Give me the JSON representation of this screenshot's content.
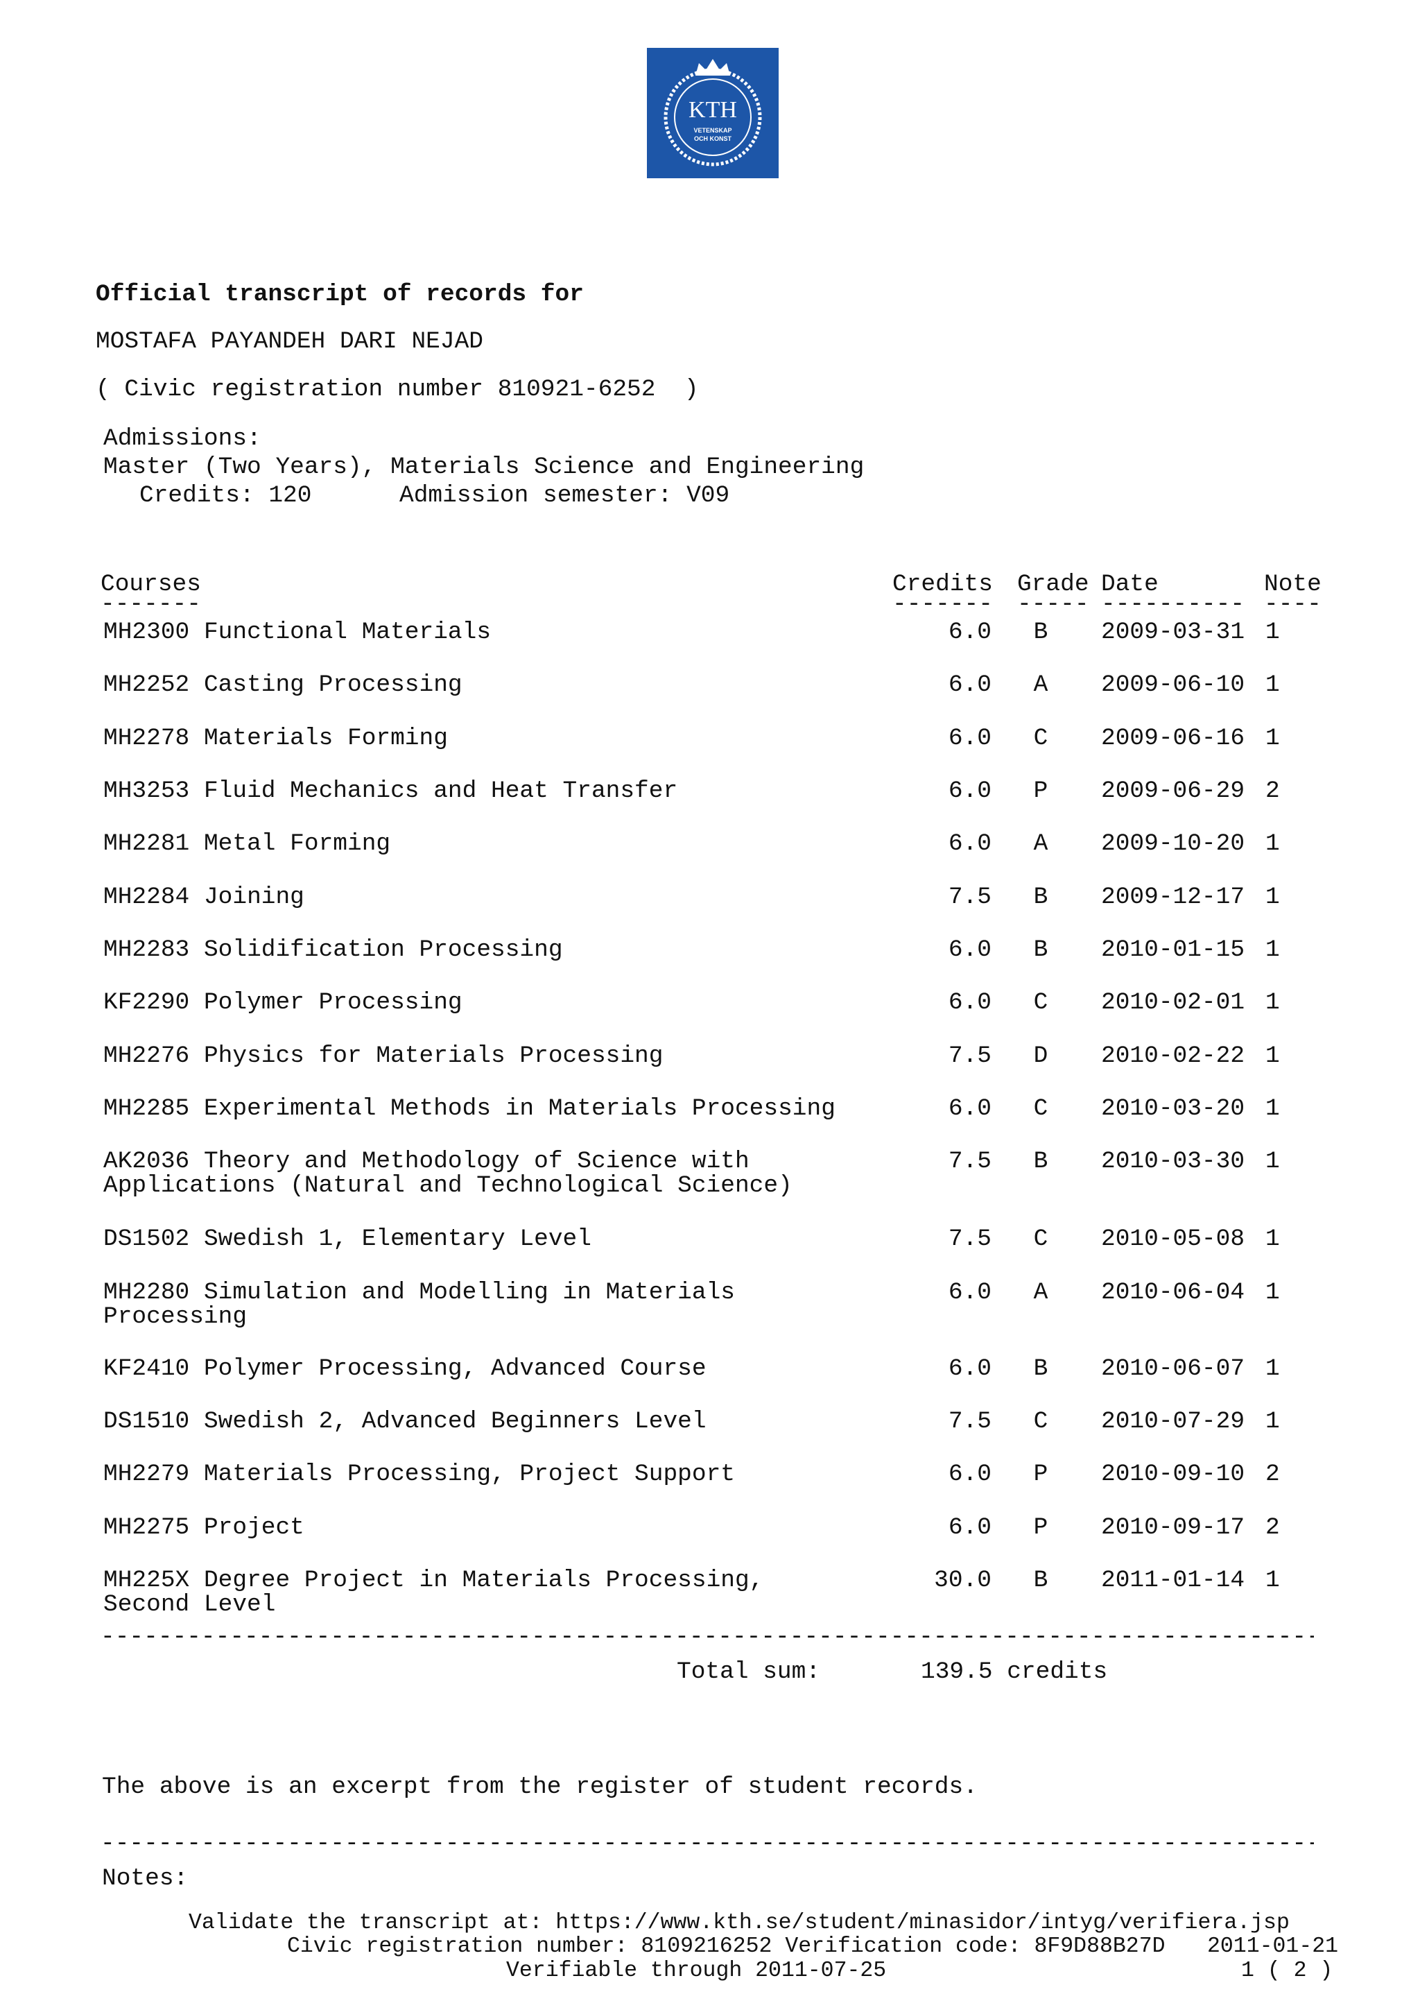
{
  "logo": {
    "text": "KTH",
    "subtext_1": "VETENSKAP",
    "subtext_2": "OCH KONST",
    "color": "#1d56a8"
  },
  "header": {
    "title": "Official transcript of records for",
    "student_name": "MOSTAFA PAYANDEH DARI NEJAD",
    "civic_line": "( Civic registration number 810921-6252  )"
  },
  "admissions": {
    "label": "Admissions:",
    "program": "Master (Two Years), Materials Science and Engineering",
    "credits_line": "Credits: 120",
    "semester_line": "Admission semester: V09"
  },
  "table": {
    "headers": {
      "courses": "Courses",
      "credits": "Credits",
      "grade": "Grade",
      "date": "Date",
      "note": "Note"
    },
    "header_underlines": {
      "courses": "-------",
      "credits": "-------",
      "grade": "-----",
      "date": "----------",
      "note": "----"
    },
    "courses": [
      {
        "code": "MH2300",
        "name": "Functional Materials",
        "credits": "6.0",
        "grade": "B",
        "date": "2009-03-31",
        "note": "1"
      },
      {
        "code": "MH2252",
        "name": "Casting Processing",
        "credits": "6.0",
        "grade": "A",
        "date": "2009-06-10",
        "note": "1"
      },
      {
        "code": "MH2278",
        "name": "Materials Forming",
        "credits": "6.0",
        "grade": "C",
        "date": "2009-06-16",
        "note": "1"
      },
      {
        "code": "MH3253",
        "name": "Fluid Mechanics and Heat Transfer",
        "credits": "6.0",
        "grade": "P",
        "date": "2009-06-29",
        "note": "2"
      },
      {
        "code": "MH2281",
        "name": "Metal Forming",
        "credits": "6.0",
        "grade": "A",
        "date": "2009-10-20",
        "note": "1"
      },
      {
        "code": "MH2284",
        "name": "Joining",
        "credits": "7.5",
        "grade": "B",
        "date": "2009-12-17",
        "note": "1"
      },
      {
        "code": "MH2283",
        "name": "Solidification Processing",
        "credits": "6.0",
        "grade": "B",
        "date": "2010-01-15",
        "note": "1"
      },
      {
        "code": "KF2290",
        "name": "Polymer Processing",
        "credits": "6.0",
        "grade": "C",
        "date": "2010-02-01",
        "note": "1"
      },
      {
        "code": "MH2276",
        "name": "Physics for Materials Processing",
        "credits": "7.5",
        "grade": "D",
        "date": "2010-02-22",
        "note": "1"
      },
      {
        "code": "MH2285",
        "name": "Experimental Methods in Materials Processing",
        "credits": "6.0",
        "grade": "C",
        "date": "2010-03-20",
        "note": "1"
      },
      {
        "code": "AK2036",
        "name": "Theory and Methodology of Science with Applications (Natural and Technological Science)",
        "credits": "7.5",
        "grade": "B",
        "date": "2010-03-30",
        "note": "1"
      },
      {
        "code": "DS1502",
        "name": "Swedish 1, Elementary Level",
        "credits": "7.5",
        "grade": "C",
        "date": "2010-05-08",
        "note": "1"
      },
      {
        "code": "MH2280",
        "name": "Simulation and Modelling in Materials Processing",
        "credits": "6.0",
        "grade": "A",
        "date": "2010-06-04",
        "note": "1"
      },
      {
        "code": "KF2410",
        "name": "Polymer Processing, Advanced Course",
        "credits": "6.0",
        "grade": "B",
        "date": "2010-06-07",
        "note": "1"
      },
      {
        "code": "DS1510",
        "name": "Swedish 2, Advanced Beginners Level",
        "credits": "7.5",
        "grade": "C",
        "date": "2010-07-29",
        "note": "1"
      },
      {
        "code": "MH2279",
        "name": "Materials Processing, Project Support",
        "credits": "6.0",
        "grade": "P",
        "date": "2010-09-10",
        "note": "2"
      },
      {
        "code": "MH2275",
        "name": "Project",
        "credits": "6.0",
        "grade": "P",
        "date": "2010-09-17",
        "note": "2"
      },
      {
        "code": "MH225X",
        "name": "Degree Project in Materials Processing, Second Level",
        "credits": "30.0",
        "grade": "B",
        "date": "2011-01-14",
        "note": "1"
      }
    ],
    "separator": "-------------------------------------------------------------------------------------",
    "total_label": "Total sum:",
    "total_value": "139.5 credits"
  },
  "excerpt_note": "The above is an excerpt from the register of student records.",
  "notes_label": "Notes:",
  "footer": {
    "validate": "Validate the transcript at: https://www.kth.se/student/minasidor/intyg/verifiera.jsp",
    "civic_verification": "Civic registration number: 8109216252 Verification code: 8F9D88B27D",
    "verifiable": "Verifiable through 2011-07-25",
    "date": "2011-01-21",
    "page": "1 ( 2 )"
  }
}
